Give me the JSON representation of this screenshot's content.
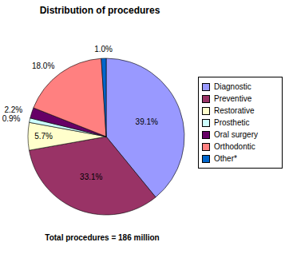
{
  "chart_data": {
    "type": "pie",
    "title": "Distribution of procedures",
    "categories": [
      "Diagnostic",
      "Preventive",
      "Restorative",
      "Prosthetic",
      "Oral surgery",
      "Orthodontic",
      "Other*"
    ],
    "values": [
      39.1,
      33.1,
      5.7,
      0.9,
      2.2,
      18.0,
      1.0
    ],
    "value_labels": [
      "39.1%",
      "33.1%",
      "5.7%",
      "0.9%",
      "2.2%",
      "18.0%",
      "1.0%"
    ],
    "colors": [
      "#9999ff",
      "#993366",
      "#ffffcc",
      "#ccffff",
      "#660066",
      "#ff8080",
      "#0066cc"
    ],
    "data_labels": true,
    "legend": "right",
    "annotations": [
      "Total procedures = 186 million"
    ]
  }
}
